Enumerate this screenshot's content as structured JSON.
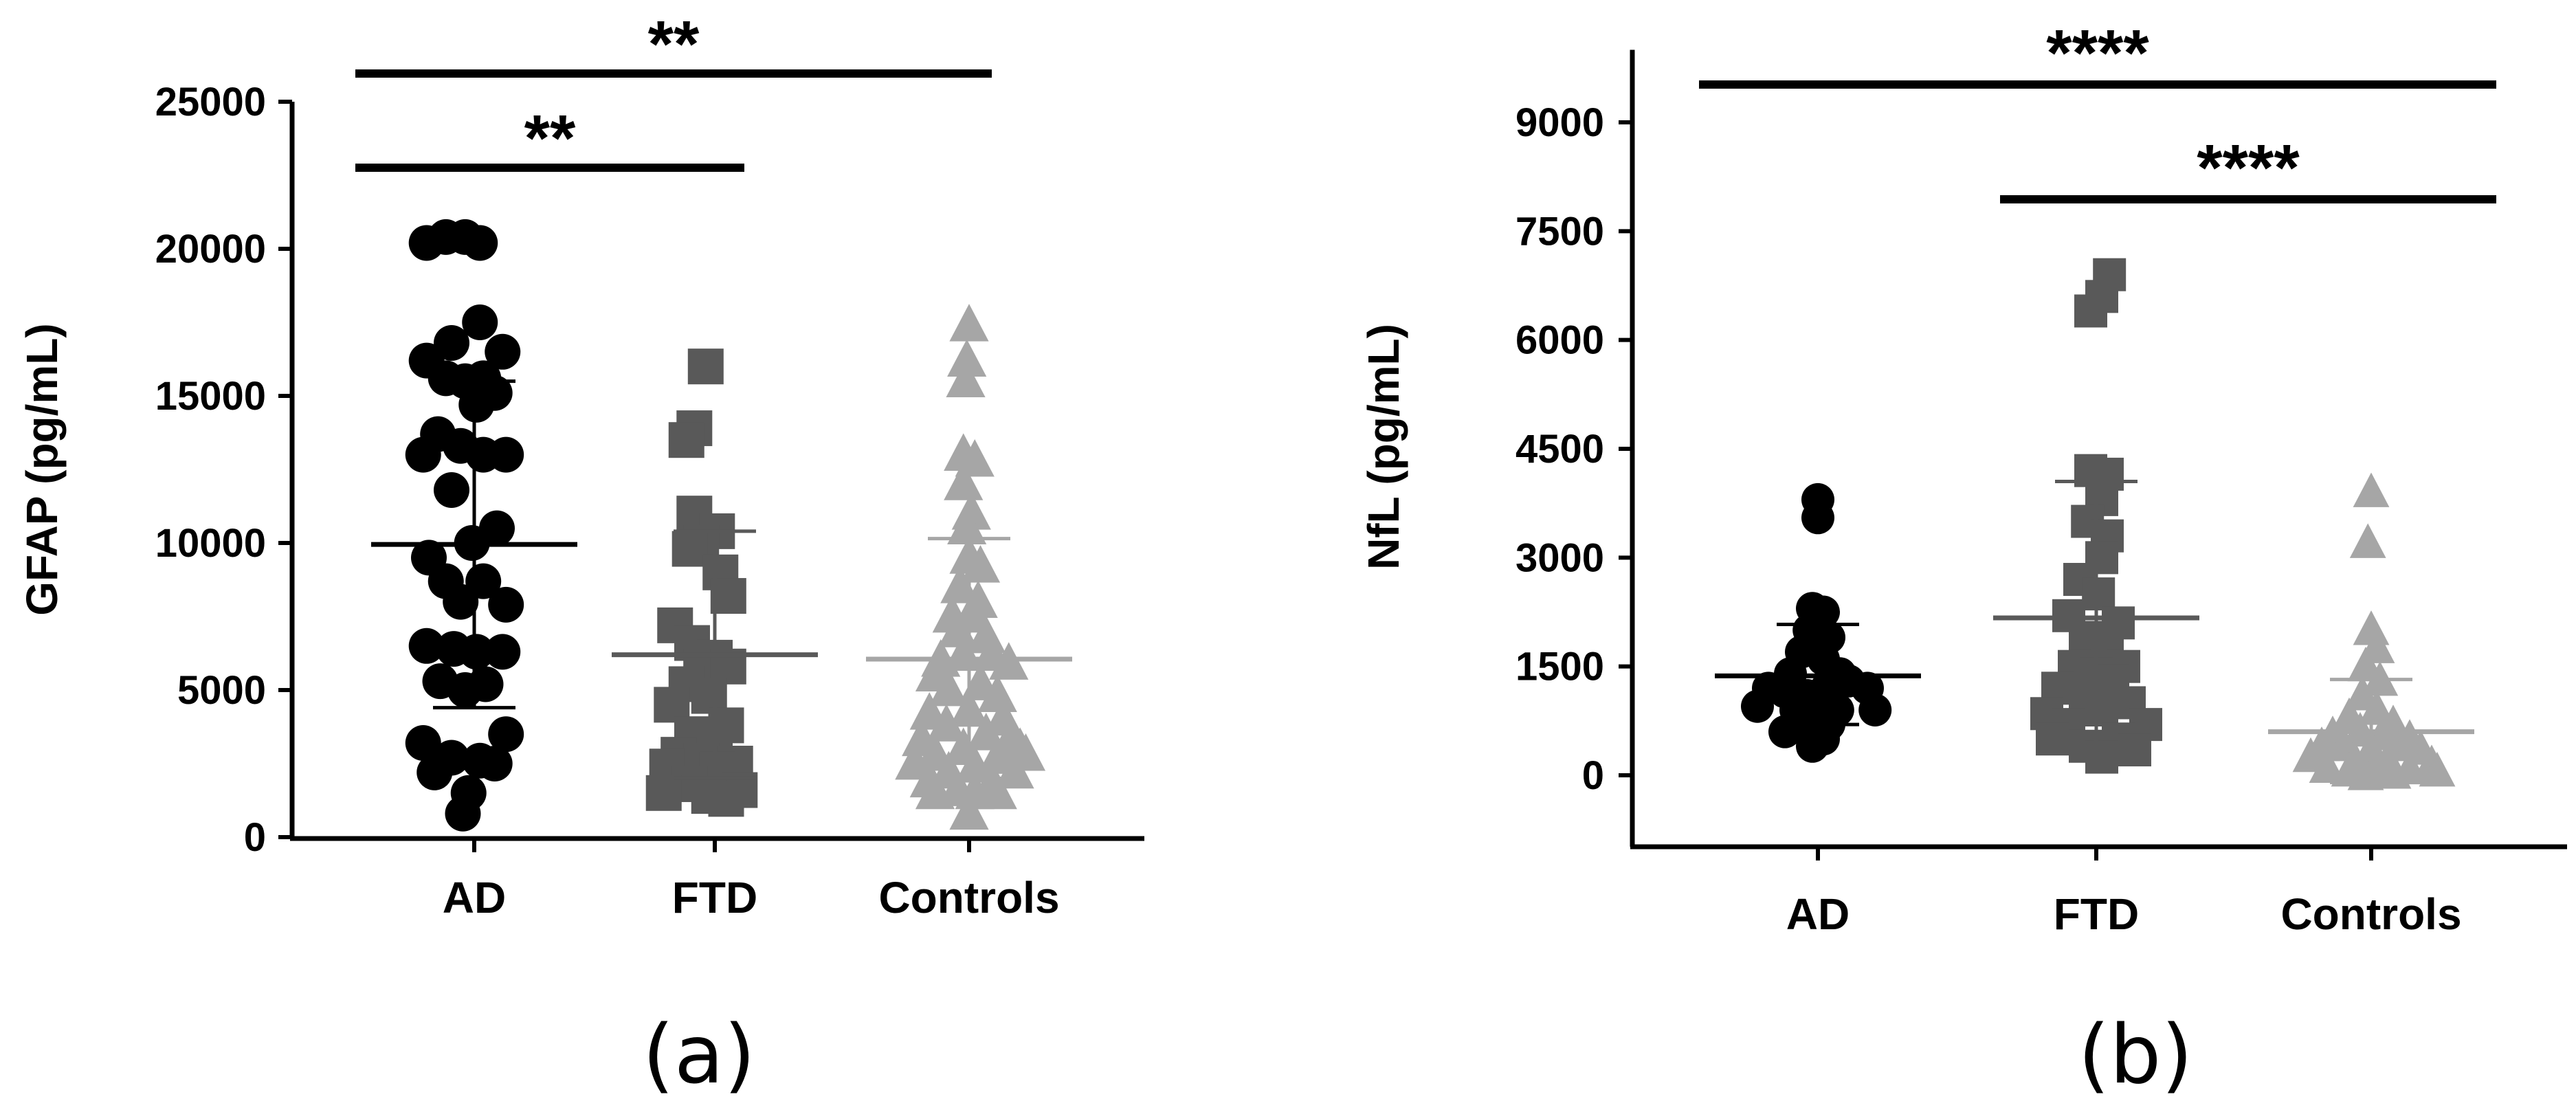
{
  "chart_data": [
    {
      "type": "scatter",
      "caption": "(a)",
      "ylabel": "GFAP (pg/mL)",
      "ylim": [
        0,
        25000
      ],
      "yticks": [
        0,
        5000,
        10000,
        15000,
        20000,
        25000
      ],
      "categories": [
        "AD",
        "FTD",
        "Controls"
      ],
      "colors": {
        "AD": "#000000",
        "FTD": "#595959",
        "Controls": "#a6a6a6"
      },
      "markers": {
        "AD": "circle",
        "FTD": "square",
        "Controls": "triangle"
      },
      "summary": [
        {
          "category": "AD",
          "mean": 9950,
          "sd_low": 4400,
          "sd_high": 15500
        },
        {
          "category": "FTD",
          "mean": 6200,
          "sd_low": 2000,
          "sd_high": 10400
        },
        {
          "category": "Controls",
          "mean": 6050,
          "sd_low": 2000,
          "sd_high": 10150
        }
      ],
      "series": [
        {
          "name": "AD",
          "points": [
            {
              "o": -0.42,
              "y": 20200
            },
            {
              "o": -0.25,
              "y": 20400
            },
            {
              "o": -0.08,
              "y": 20400
            },
            {
              "o": 0.05,
              "y": 20200
            },
            {
              "o": 0.05,
              "y": 17500
            },
            {
              "o": -0.2,
              "y": 16800
            },
            {
              "o": 0.25,
              "y": 16500
            },
            {
              "o": -0.42,
              "y": 16200
            },
            {
              "o": -0.25,
              "y": 15600
            },
            {
              "o": -0.08,
              "y": 15500
            },
            {
              "o": 0.08,
              "y": 15600
            },
            {
              "o": 0.18,
              "y": 15100
            },
            {
              "o": 0.02,
              "y": 14700
            },
            {
              "o": -0.32,
              "y": 13700
            },
            {
              "o": -0.12,
              "y": 13300
            },
            {
              "o": 0.28,
              "y": 13000
            },
            {
              "o": -0.45,
              "y": 13000
            },
            {
              "o": 0.08,
              "y": 13000
            },
            {
              "o": -0.2,
              "y": 11800
            },
            {
              "o": 0.2,
              "y": 10500
            },
            {
              "o": -0.02,
              "y": 10000
            },
            {
              "o": -0.4,
              "y": 9500
            },
            {
              "o": -0.25,
              "y": 8700
            },
            {
              "o": 0.08,
              "y": 8700
            },
            {
              "o": -0.12,
              "y": 8000
            },
            {
              "o": 0.28,
              "y": 7900
            },
            {
              "o": -0.42,
              "y": 6500
            },
            {
              "o": -0.18,
              "y": 6400
            },
            {
              "o": 0.02,
              "y": 6300
            },
            {
              "o": 0.25,
              "y": 6300
            },
            {
              "o": -0.3,
              "y": 5300
            },
            {
              "o": -0.08,
              "y": 5000
            },
            {
              "o": 0.1,
              "y": 5200
            },
            {
              "o": 0.28,
              "y": 3500
            },
            {
              "o": -0.45,
              "y": 3200
            },
            {
              "o": -0.2,
              "y": 2700
            },
            {
              "o": 0.05,
              "y": 2600
            },
            {
              "o": 0.18,
              "y": 2500
            },
            {
              "o": -0.35,
              "y": 2200
            },
            {
              "o": -0.05,
              "y": 1500
            },
            {
              "o": -0.1,
              "y": 800
            }
          ]
        },
        {
          "name": "FTD",
          "points": [
            {
              "o": -0.08,
              "y": 16000
            },
            {
              "o": -0.18,
              "y": 13900
            },
            {
              "o": -0.25,
              "y": 13500
            },
            {
              "o": -0.18,
              "y": 11000
            },
            {
              "o": 0.02,
              "y": 10400
            },
            {
              "o": -0.12,
              "y": 10000
            },
            {
              "o": -0.22,
              "y": 9800
            },
            {
              "o": 0.05,
              "y": 9000
            },
            {
              "o": 0.12,
              "y": 8200
            },
            {
              "o": -0.35,
              "y": 7200
            },
            {
              "o": -0.2,
              "y": 6600
            },
            {
              "o": 0.0,
              "y": 6100
            },
            {
              "o": -0.12,
              "y": 5800
            },
            {
              "o": 0.12,
              "y": 5800
            },
            {
              "o": -0.25,
              "y": 5200
            },
            {
              "o": -0.05,
              "y": 4800
            },
            {
              "o": -0.38,
              "y": 4500
            },
            {
              "o": 0.1,
              "y": 3800
            },
            {
              "o": -0.2,
              "y": 3500
            },
            {
              "o": 0.0,
              "y": 3300
            },
            {
              "o": -0.32,
              "y": 2800
            },
            {
              "o": -0.12,
              "y": 2600
            },
            {
              "o": 0.18,
              "y": 2500
            },
            {
              "o": -0.42,
              "y": 2400
            },
            {
              "o": 0.02,
              "y": 2300
            },
            {
              "o": -0.22,
              "y": 1800
            },
            {
              "o": 0.22,
              "y": 1600
            },
            {
              "o": -0.45,
              "y": 1500
            },
            {
              "o": -0.05,
              "y": 1400
            },
            {
              "o": 0.1,
              "y": 1300
            }
          ]
        },
        {
          "name": "Controls",
          "points": [
            {
              "o": 0.0,
              "y": 17400
            },
            {
              "o": -0.02,
              "y": 16200
            },
            {
              "o": -0.03,
              "y": 15500
            },
            {
              "o": -0.05,
              "y": 13000
            },
            {
              "o": 0.05,
              "y": 12800
            },
            {
              "o": -0.05,
              "y": 12000
            },
            {
              "o": 0.02,
              "y": 11000
            },
            {
              "o": -0.02,
              "y": 10500
            },
            {
              "o": 0.0,
              "y": 9500
            },
            {
              "o": 0.1,
              "y": 9200
            },
            {
              "o": -0.08,
              "y": 8500
            },
            {
              "o": 0.08,
              "y": 8000
            },
            {
              "o": -0.15,
              "y": 7500
            },
            {
              "o": 0.05,
              "y": 7500
            },
            {
              "o": -0.1,
              "y": 7000
            },
            {
              "o": 0.15,
              "y": 6800
            },
            {
              "o": -0.25,
              "y": 6000
            },
            {
              "o": -0.05,
              "y": 6200
            },
            {
              "o": 0.2,
              "y": 6200
            },
            {
              "o": 0.35,
              "y": 5900
            },
            {
              "o": -0.3,
              "y": 5500
            },
            {
              "o": 0.1,
              "y": 5200
            },
            {
              "o": -0.18,
              "y": 5000
            },
            {
              "o": 0.25,
              "y": 4800
            },
            {
              "o": -0.35,
              "y": 4200
            },
            {
              "o": 0.0,
              "y": 4300
            },
            {
              "o": 0.3,
              "y": 4000
            },
            {
              "o": -0.2,
              "y": 3800
            },
            {
              "o": 0.15,
              "y": 3500
            },
            {
              "o": -0.42,
              "y": 3300
            },
            {
              "o": 0.35,
              "y": 3200
            },
            {
              "o": 0.45,
              "y": 3000
            },
            {
              "o": -0.05,
              "y": 3000
            },
            {
              "o": -0.3,
              "y": 2800
            },
            {
              "o": 0.25,
              "y": 2700
            },
            {
              "o": 0.5,
              "y": 2800
            },
            {
              "o": -0.48,
              "y": 2500
            },
            {
              "o": 0.05,
              "y": 2400
            },
            {
              "o": -0.18,
              "y": 2200
            },
            {
              "o": 0.4,
              "y": 2200
            },
            {
              "o": -0.35,
              "y": 1900
            },
            {
              "o": 0.2,
              "y": 1800
            },
            {
              "o": -0.1,
              "y": 1600
            },
            {
              "o": -0.3,
              "y": 1500
            },
            {
              "o": 0.05,
              "y": 1500
            },
            {
              "o": 0.25,
              "y": 1500
            },
            {
              "o": 0.0,
              "y": 800
            }
          ]
        }
      ],
      "significance": [
        {
          "from": "AD",
          "to": "Controls",
          "level": 0,
          "label": "**",
          "y": 26000
        },
        {
          "from": "AD",
          "to": "FTD",
          "level": 1,
          "label": "**",
          "y": 23000
        }
      ]
    },
    {
      "type": "scatter",
      "caption": "(b)",
      "ylabel": "NfL  (pg/mL)",
      "ylim": [
        -1000,
        10000
      ],
      "yticks": [
        0,
        1500,
        3000,
        4500,
        6000,
        7500,
        9000
      ],
      "categories": [
        "AD",
        "FTD",
        "Controls"
      ],
      "colors": {
        "AD": "#000000",
        "FTD": "#595959",
        "Controls": "#a6a6a6"
      },
      "markers": {
        "AD": "circle",
        "FTD": "square",
        "Controls": "triangle"
      },
      "summary": [
        {
          "category": "AD",
          "mean": 1370,
          "sd_low": 700,
          "sd_high": 2080
        },
        {
          "category": "FTD",
          "mean": 2170,
          "sd_low": 350,
          "sd_high": 4050
        },
        {
          "category": "Controls",
          "mean": 600,
          "sd_low": -100,
          "sd_high": 1320
        }
      ],
      "series": [
        {
          "name": "AD",
          "points": [
            {
              "o": 0.0,
              "y": 3800
            },
            {
              "o": 0.0,
              "y": 3550
            },
            {
              "o": -0.05,
              "y": 2300
            },
            {
              "o": 0.05,
              "y": 2250
            },
            {
              "o": -0.08,
              "y": 2000
            },
            {
              "o": 0.1,
              "y": 1900
            },
            {
              "o": -0.15,
              "y": 1700
            },
            {
              "o": 0.05,
              "y": 1600
            },
            {
              "o": -0.25,
              "y": 1400
            },
            {
              "o": 0.2,
              "y": 1400
            },
            {
              "o": -0.45,
              "y": 1200
            },
            {
              "o": -0.3,
              "y": 1150
            },
            {
              "o": -0.1,
              "y": 1100
            },
            {
              "o": 0.08,
              "y": 1200
            },
            {
              "o": 0.28,
              "y": 1300
            },
            {
              "o": 0.45,
              "y": 1200
            },
            {
              "o": -0.55,
              "y": 950
            },
            {
              "o": -0.2,
              "y": 900
            },
            {
              "o": 0.0,
              "y": 950
            },
            {
              "o": 0.18,
              "y": 900
            },
            {
              "o": 0.52,
              "y": 900
            },
            {
              "o": -0.12,
              "y": 750
            },
            {
              "o": 0.1,
              "y": 700
            },
            {
              "o": -0.3,
              "y": 600
            },
            {
              "o": 0.05,
              "y": 500
            },
            {
              "o": -0.05,
              "y": 400
            }
          ]
        },
        {
          "name": "FTD",
          "points": [
            {
              "o": 0.12,
              "y": 6900
            },
            {
              "o": -0.05,
              "y": 6400
            },
            {
              "o": 0.05,
              "y": 6600
            },
            {
              "o": -0.05,
              "y": 4200
            },
            {
              "o": 0.1,
              "y": 4150
            },
            {
              "o": 0.05,
              "y": 3800
            },
            {
              "o": -0.08,
              "y": 3500
            },
            {
              "o": 0.1,
              "y": 3300
            },
            {
              "o": 0.05,
              "y": 3000
            },
            {
              "o": -0.15,
              "y": 2700
            },
            {
              "o": 0.02,
              "y": 2500
            },
            {
              "o": -0.25,
              "y": 2200
            },
            {
              "o": 0.2,
              "y": 2100
            },
            {
              "o": -0.1,
              "y": 1900
            },
            {
              "o": 0.1,
              "y": 1800
            },
            {
              "o": -0.2,
              "y": 1500
            },
            {
              "o": 0.25,
              "y": 1500
            },
            {
              "o": 0.0,
              "y": 1400
            },
            {
              "o": -0.35,
              "y": 1200
            },
            {
              "o": 0.15,
              "y": 1300
            },
            {
              "o": -0.1,
              "y": 1100
            },
            {
              "o": 0.3,
              "y": 1000
            },
            {
              "o": -0.45,
              "y": 850
            },
            {
              "o": 0.05,
              "y": 900
            },
            {
              "o": -0.25,
              "y": 700
            },
            {
              "o": 0.45,
              "y": 700
            },
            {
              "o": -0.4,
              "y": 500
            },
            {
              "o": 0.2,
              "y": 500
            },
            {
              "o": -0.1,
              "y": 400
            },
            {
              "o": 0.35,
              "y": 350
            },
            {
              "o": 0.05,
              "y": 250
            }
          ]
        },
        {
          "name": "Controls",
          "points": [
            {
              "o": 0.0,
              "y": 3900
            },
            {
              "o": -0.03,
              "y": 3200
            },
            {
              "o": 0.0,
              "y": 2000
            },
            {
              "o": 0.05,
              "y": 1750
            },
            {
              "o": -0.05,
              "y": 1500
            },
            {
              "o": 0.08,
              "y": 1300
            },
            {
              "o": -0.08,
              "y": 1100
            },
            {
              "o": 0.05,
              "y": 900
            },
            {
              "o": -0.2,
              "y": 800
            },
            {
              "o": 0.2,
              "y": 700
            },
            {
              "o": -0.35,
              "y": 550
            },
            {
              "o": -0.1,
              "y": 600
            },
            {
              "o": 0.1,
              "y": 550
            },
            {
              "o": 0.35,
              "y": 500
            },
            {
              "o": -0.45,
              "y": 400
            },
            {
              "o": -0.25,
              "y": 400
            },
            {
              "o": 0.0,
              "y": 350
            },
            {
              "o": 0.25,
              "y": 400
            },
            {
              "o": 0.45,
              "y": 350
            },
            {
              "o": -0.55,
              "y": 250
            },
            {
              "o": -0.15,
              "y": 200
            },
            {
              "o": 0.15,
              "y": 200
            },
            {
              "o": 0.55,
              "y": 150
            },
            {
              "o": -0.4,
              "y": 100
            },
            {
              "o": 0.0,
              "y": 100
            },
            {
              "o": 0.35,
              "y": 80
            },
            {
              "o": -0.2,
              "y": 50
            },
            {
              "o": 0.6,
              "y": 50
            },
            {
              "o": 0.2,
              "y": 20
            },
            {
              "o": -0.05,
              "y": 0
            }
          ]
        }
      ],
      "significance": [
        {
          "from": "AD",
          "to": "Controls",
          "level": 0,
          "label": "****",
          "y": 9500
        },
        {
          "from": "FTD",
          "to": "Controls",
          "level": 1,
          "label": "****",
          "y": 7900
        }
      ]
    }
  ]
}
